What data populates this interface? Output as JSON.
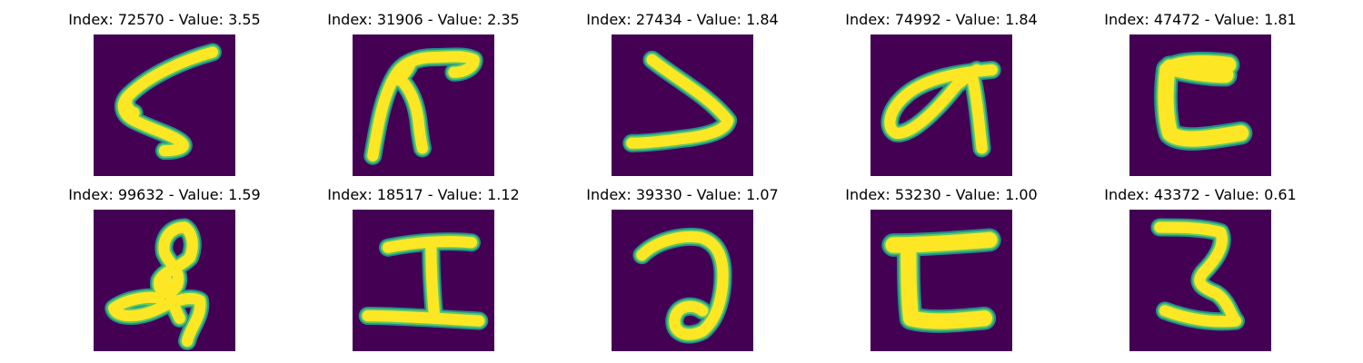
{
  "colors": {
    "background": "#440154",
    "stroke_outer": "#21908c",
    "stroke_mid": "#5ec962",
    "stroke_core": "#fde725"
  },
  "panels": [
    {
      "title": "Index: 72570 - Value: 3.55"
    },
    {
      "title": "Index: 31906 - Value: 2.35"
    },
    {
      "title": "Index: 27434 - Value: 1.84"
    },
    {
      "title": "Index: 74992 - Value: 1.84"
    },
    {
      "title": "Index: 47472 - Value: 1.81"
    },
    {
      "title": "Index: 99632 - Value: 1.59"
    },
    {
      "title": "Index: 18517 - Value: 1.12"
    },
    {
      "title": "Index: 39330 - Value: 1.07"
    },
    {
      "title": "Index: 53230 - Value: 1.00"
    },
    {
      "title": "Index: 43372 - Value: 0.61"
    }
  ]
}
